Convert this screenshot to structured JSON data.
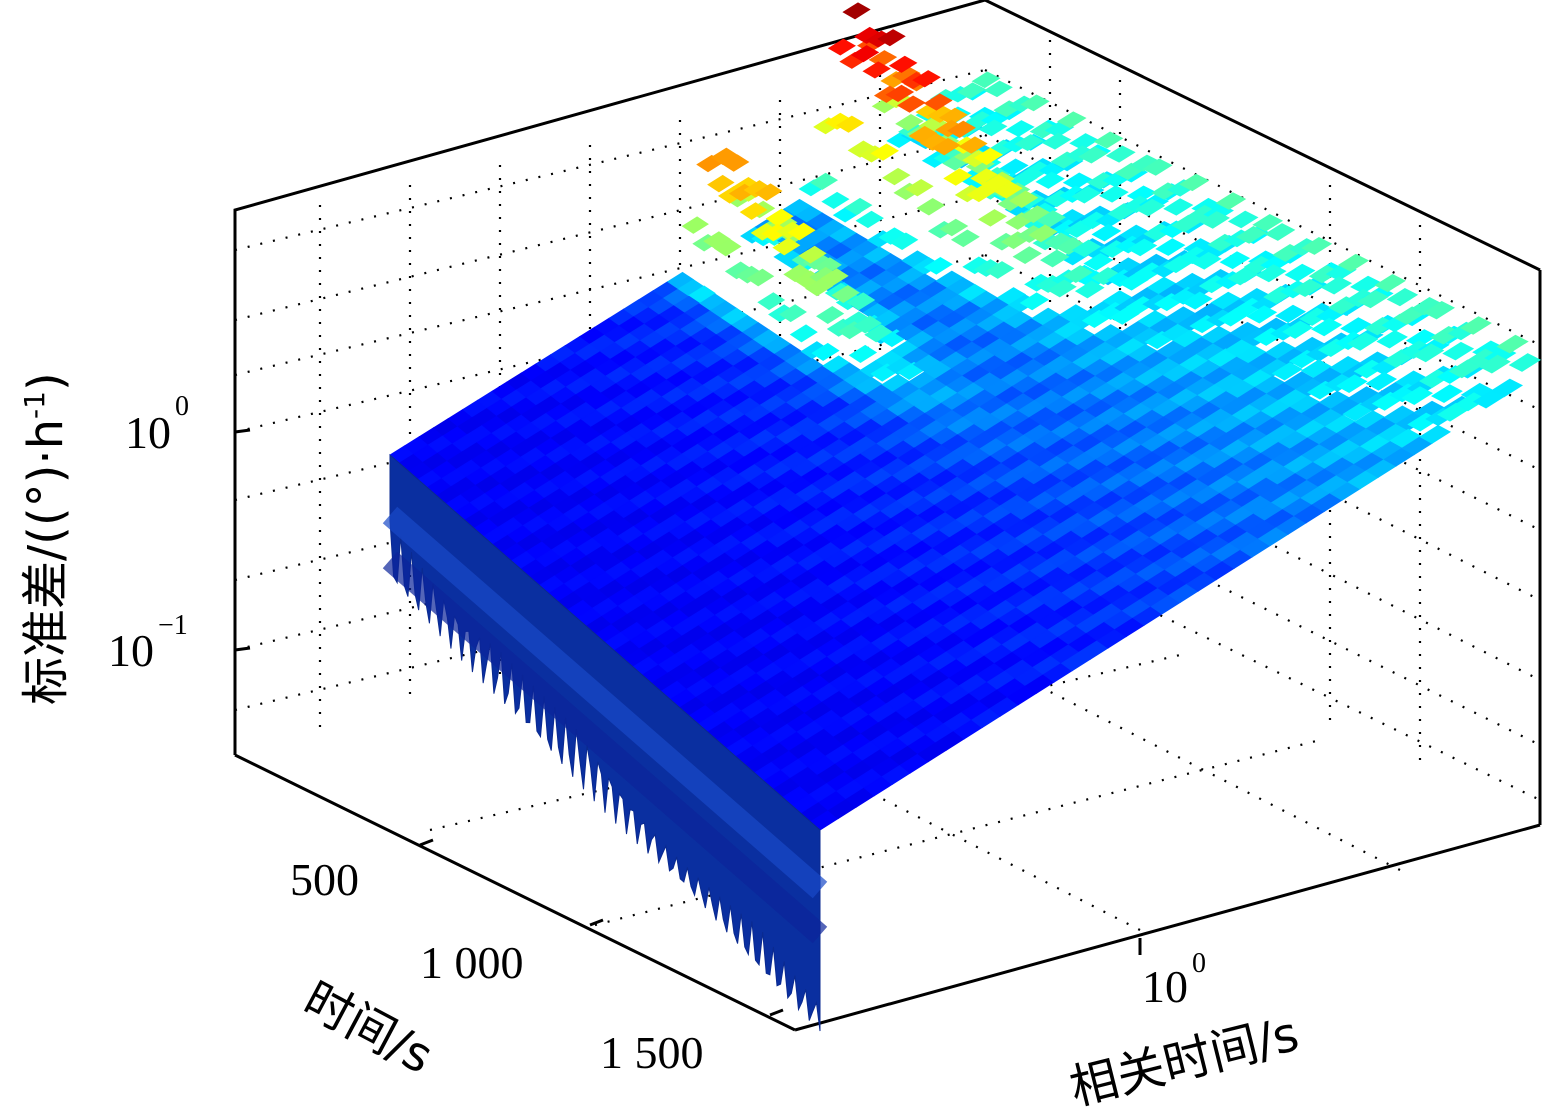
{
  "chart_data": {
    "type": "surface3d",
    "x_axis": {
      "label": "时间/s",
      "ticks": [
        {
          "value": 500,
          "text": "500"
        },
        {
          "value": 1000,
          "text": "1 000"
        },
        {
          "value": 1500,
          "text": "1 500"
        }
      ]
    },
    "y_axis": {
      "label": "相关时间/s",
      "scale": "log",
      "ticks": [
        {
          "value": 1,
          "base": "10",
          "exp": "0"
        }
      ]
    },
    "z_axis": {
      "label": "标准差/((°)·h",
      "label_sup": "-1",
      "label_close": ")",
      "scale": "log",
      "ticks": [
        {
          "value": 0.1,
          "base": "10",
          "exp": "−1"
        },
        {
          "value": 1,
          "base": "10",
          "exp": "0"
        }
      ]
    },
    "grid": true,
    "colormap": "jet",
    "surface": {
      "description_values": "standard deviation rises toward larger correlation time; two sharp peaks near the far edge",
      "peaks": [
        {
          "relative_time_fraction": 0.55,
          "time_fraction": 0.08,
          "level": 0.88
        },
        {
          "relative_time_fraction": 0.78,
          "time_fraction": 0.06,
          "level": 1.0
        }
      ]
    }
  }
}
